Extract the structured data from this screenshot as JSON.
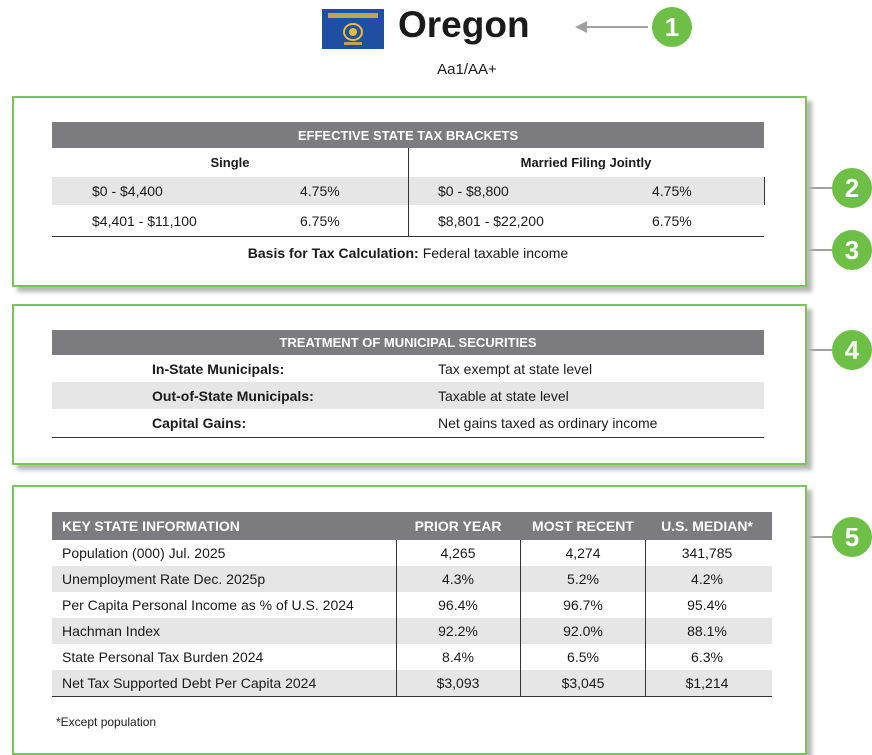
{
  "header": {
    "title": "Oregon",
    "rating": "Aa1/AA+"
  },
  "callouts": [
    "1",
    "2",
    "3",
    "4",
    "5"
  ],
  "tax_brackets": {
    "title": "EFFECTIVE STATE TAX BRACKETS",
    "columns": [
      "Single",
      "Married Filing Jointly"
    ],
    "rows": [
      [
        "$0 - $4,400",
        "4.75%",
        "$0 - $8,800",
        "4.75%"
      ],
      [
        "$4,401 - $11,100",
        "6.75%",
        "$8,801 - $22,200",
        "6.75%"
      ]
    ],
    "basis_label": "Basis for Tax Calculation:",
    "basis_value": "Federal taxable income"
  },
  "municipal": {
    "title": "TREATMENT OF MUNICIPAL SECURITIES",
    "rows": [
      [
        "In-State Municipals:",
        "Tax exempt at state level"
      ],
      [
        "Out-of-State Municipals:",
        "Taxable at state level"
      ],
      [
        "Capital Gains:",
        "Net gains taxed as ordinary income"
      ]
    ]
  },
  "key_info": {
    "columns": [
      "KEY STATE INFORMATION",
      "PRIOR YEAR",
      "MOST RECENT",
      "U.S. MEDIAN*"
    ],
    "rows": [
      [
        "Population (000) Jul. 2025",
        "4,265",
        "4,274",
        "341,785"
      ],
      [
        "Unemployment Rate Dec. 2025p",
        "4.3%",
        "5.2%",
        "4.2%"
      ],
      [
        "Per Capita Personal Income as % of U.S. 2024",
        "96.4%",
        "96.7%",
        "95.4%"
      ],
      [
        "Hachman Index",
        "92.2%",
        "92.0%",
        "88.1%"
      ],
      [
        "State Personal Tax Burden 2024",
        "8.4%",
        "6.5%",
        "6.3%"
      ],
      [
        "Net Tax Supported Debt Per Capita 2024",
        "$3,093",
        "$3,045",
        "$1,214"
      ]
    ],
    "footnote": "*Except population"
  }
}
